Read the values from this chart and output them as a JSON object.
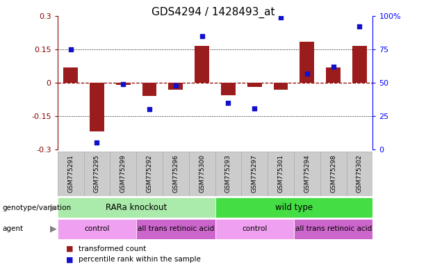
{
  "title": "GDS4294 / 1428493_at",
  "samples": [
    "GSM775291",
    "GSM775295",
    "GSM775299",
    "GSM775292",
    "GSM775296",
    "GSM775300",
    "GSM775293",
    "GSM775297",
    "GSM775301",
    "GSM775294",
    "GSM775298",
    "GSM775302"
  ],
  "bar_values": [
    0.07,
    -0.22,
    -0.01,
    -0.06,
    -0.03,
    0.165,
    -0.055,
    -0.02,
    -0.03,
    0.185,
    0.07,
    0.165
  ],
  "blue_dots": [
    75,
    5,
    49,
    30,
    48,
    85,
    35,
    31,
    99,
    57,
    62,
    92
  ],
  "ylim": [
    -0.3,
    0.3
  ],
  "y2lim": [
    0,
    100
  ],
  "y_ticks": [
    -0.3,
    -0.15,
    0,
    0.15,
    0.3
  ],
  "y2_ticks": [
    0,
    25,
    50,
    75,
    100
  ],
  "hline_values": [
    0.15,
    0,
    -0.15
  ],
  "bar_color": "#9B1C1C",
  "blue_color": "#1111CC",
  "legend_bar_label": "transformed count",
  "legend_dot_label": "percentile rank within the sample",
  "genotype_variation_label": "genotype/variation",
  "agent_label": "agent",
  "groups": [
    {
      "label": "RARa knockout",
      "start": 0,
      "end": 6,
      "color": "#AAEAAA"
    },
    {
      "label": "wild type",
      "start": 6,
      "end": 12,
      "color": "#44DD44"
    }
  ],
  "agents": [
    {
      "label": "control",
      "start": 0,
      "end": 3,
      "color": "#F0A0F0"
    },
    {
      "label": "all trans retinoic acid",
      "start": 3,
      "end": 6,
      "color": "#CC66CC"
    },
    {
      "label": "control",
      "start": 6,
      "end": 9,
      "color": "#F0A0F0"
    },
    {
      "label": "all trans retinoic acid",
      "start": 9,
      "end": 12,
      "color": "#CC66CC"
    }
  ],
  "tick_bg_color": "#CCCCCC"
}
